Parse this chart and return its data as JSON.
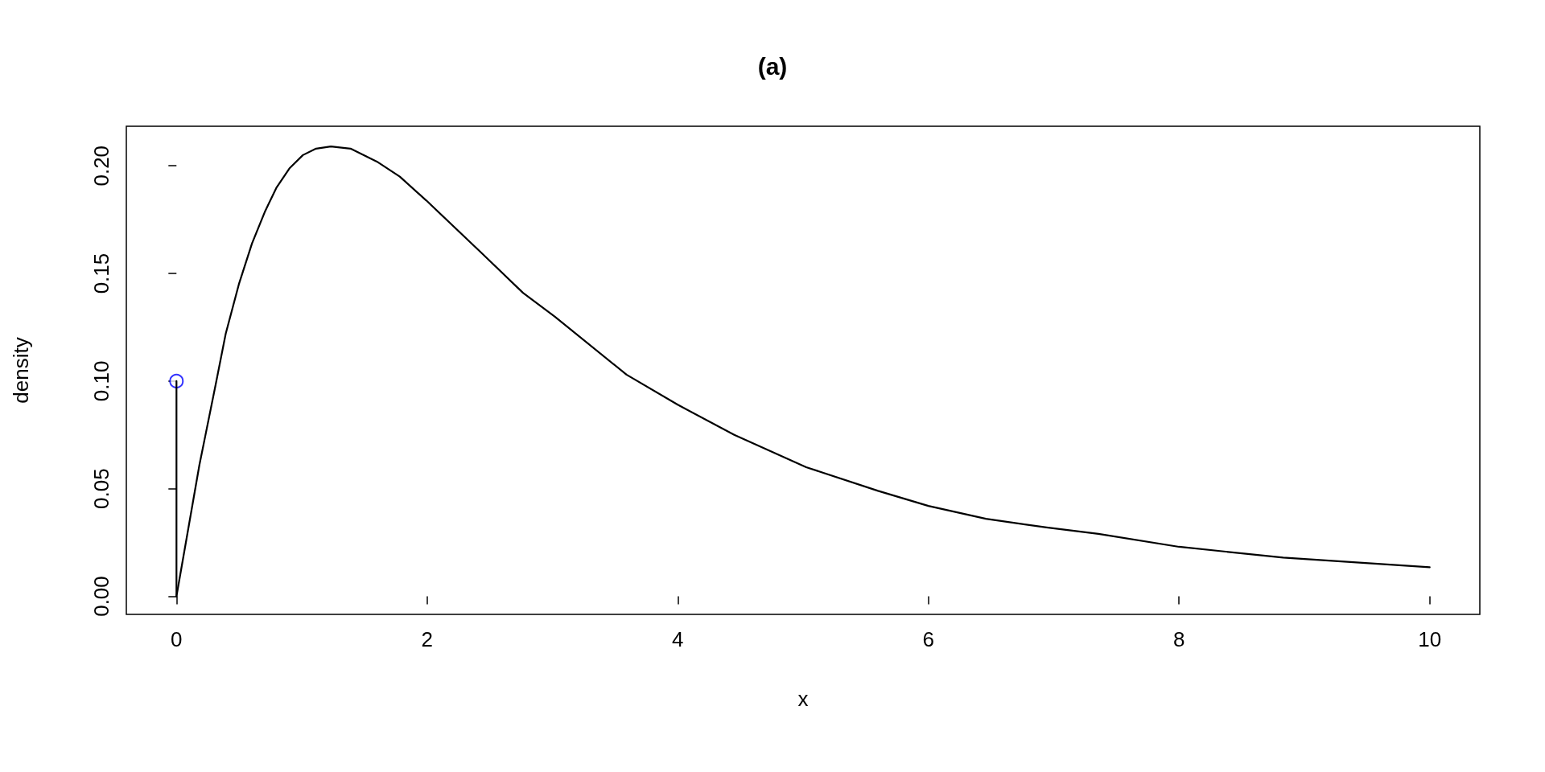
{
  "chart_data": {
    "type": "line",
    "title": "(a)",
    "xlabel": "x",
    "ylabel": "density",
    "xlim": [
      -0.4,
      10.4
    ],
    "xticks": [
      0,
      2,
      4,
      6,
      8,
      10
    ],
    "ylim": [
      -0.0084,
      0.2184
    ],
    "yticks": [
      {
        "value": 0,
        "label": "0.00"
      },
      {
        "value": 0.05,
        "label": "0.05"
      },
      {
        "value": 0.1,
        "label": "0.10"
      },
      {
        "value": 0.15,
        "label": "0.15"
      },
      {
        "value": 0.2,
        "label": "0.20"
      }
    ],
    "grid": false,
    "series": [
      {
        "color": "#000000",
        "marker": "none",
        "x": [
          0,
          0.183,
          0.315,
          0.393,
          0.498,
          0.603,
          0.708,
          0.799,
          0.904,
          1.009,
          1.114,
          1.232,
          1.389,
          1.599,
          1.782,
          1.992,
          2.444,
          2.765,
          3.018,
          3.591,
          4.0,
          4.451,
          5.025,
          5.598,
          6.0,
          6.459,
          6.943,
          7.357,
          8.0,
          8.831,
          10.0
        ],
        "values": [
          0,
          0.061,
          0.099,
          0.122,
          0.145,
          0.164,
          0.179,
          0.19,
          0.199,
          0.205,
          0.208,
          0.209,
          0.208,
          0.202,
          0.195,
          0.184,
          0.159,
          0.141,
          0.13,
          0.103,
          0.089,
          0.075,
          0.06,
          0.049,
          0.042,
          0.036,
          0.032,
          0.029,
          0.023,
          0.018,
          0.0135
        ]
      },
      {
        "color": "#000000",
        "marker": "none",
        "x": [
          0,
          0
        ],
        "values": [
          0,
          0.1
        ]
      },
      {
        "type": "scatter",
        "color": "#0000ff",
        "marker": "circle",
        "x": [
          0
        ],
        "values": [
          0.1
        ]
      }
    ]
  }
}
